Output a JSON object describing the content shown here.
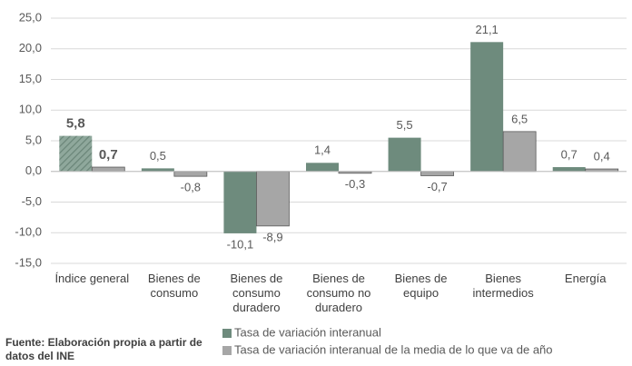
{
  "chart_data": {
    "type": "bar",
    "source": "Fuente: Elaboración propia a partir de datos del INE",
    "categories": [
      "Índice general",
      "Bienes de consumo",
      "Bienes de consumo duradero",
      "Bienes de consumo no duradero",
      "Bienes de equipo",
      "Bienes intermedios",
      "Energía"
    ],
    "series": [
      {
        "name": "Tasa de variación interanual",
        "color": "#6e8b7d",
        "values": [
          5.8,
          0.5,
          -10.1,
          1.4,
          5.5,
          21.1,
          0.7
        ],
        "value_labels": [
          "5,8",
          "0,5",
          "-10,1",
          "1,4",
          "5,5",
          "21,1",
          "0,7"
        ]
      },
      {
        "name": "Tasa de variación interanual de la media de lo que va de año",
        "color": "#a6a6a6",
        "values": [
          0.7,
          -0.8,
          -8.9,
          -0.3,
          -0.7,
          6.5,
          0.4
        ],
        "value_labels": [
          "0,7",
          "-0,8",
          "-8,9",
          "-0,3",
          "-0,7",
          "6,5",
          "0,4"
        ]
      }
    ],
    "ylim": [
      -15,
      25
    ],
    "yticks": [
      {
        "value": -15,
        "label": "-15,0"
      },
      {
        "value": -10,
        "label": "-10,0"
      },
      {
        "value": -5,
        "label": "-5,0"
      },
      {
        "value": 0,
        "label": "0,0"
      },
      {
        "value": 5,
        "label": "5,0"
      },
      {
        "value": 10,
        "label": "10,0"
      },
      {
        "value": 15,
        "label": "15,0"
      },
      {
        "value": 20,
        "label": "20,0"
      },
      {
        "value": 25,
        "label": "25,0"
      }
    ],
    "grid": true
  }
}
